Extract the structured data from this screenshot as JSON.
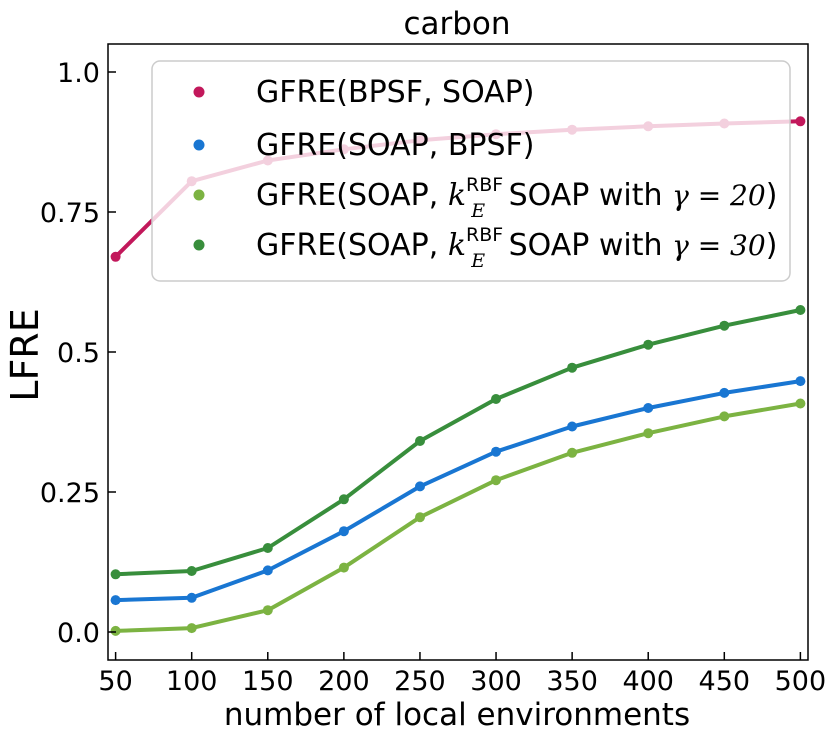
{
  "chart_data": {
    "type": "line",
    "title": "carbon",
    "xlabel": "number of local environments",
    "ylabel": "LFRE",
    "x": [
      50,
      100,
      150,
      200,
      250,
      300,
      350,
      400,
      450,
      500
    ],
    "x_tick_labels": [
      "50",
      "100",
      "150",
      "200",
      "250",
      "300",
      "350",
      "400",
      "450",
      "500"
    ],
    "y_tick_values": [
      0.0,
      0.25,
      0.5,
      0.75,
      1.0
    ],
    "y_tick_labels": [
      "0.0",
      "0.25",
      "0.5",
      "0.75",
      "1.0"
    ],
    "xlim": [
      45,
      505
    ],
    "ylim": [
      -0.05,
      1.05
    ],
    "grid": false,
    "legend_position": "top-right",
    "series": [
      {
        "name": "GFRE(BPSF, SOAP)",
        "color": "#c2185b",
        "values": [
          0.67,
          0.805,
          0.842,
          0.862,
          0.878,
          0.889,
          0.897,
          0.903,
          0.908,
          0.912
        ]
      },
      {
        "name": "GFRE(SOAP, BPSF)",
        "color": "#1976d2",
        "values": [
          0.057,
          0.061,
          0.11,
          0.18,
          0.26,
          0.322,
          0.367,
          0.4,
          0.427,
          0.448
        ]
      },
      {
        "name": "GFRE(SOAP, k_E^RBF SOAP with γ = 20)",
        "name_parts": {
          "prefix": "GFRE(SOAP, ",
          "var": "k",
          "sub": "E",
          "sup": "RBF",
          "mid": " SOAP with ",
          "gamma": "γ = 20",
          "suffix": ")"
        },
        "color": "#7cb342",
        "values": [
          0.002,
          0.007,
          0.039,
          0.115,
          0.205,
          0.271,
          0.32,
          0.355,
          0.385,
          0.408
        ]
      },
      {
        "name": "GFRE(SOAP, k_E^RBF SOAP with γ = 30)",
        "name_parts": {
          "prefix": "GFRE(SOAP, ",
          "var": "k",
          "sub": "E",
          "sup": "RBF",
          "mid": " SOAP with ",
          "gamma": "γ = 30",
          "suffix": ")"
        },
        "color": "#388e3c",
        "values": [
          0.103,
          0.109,
          0.15,
          0.237,
          0.341,
          0.416,
          0.472,
          0.513,
          0.547,
          0.575
        ]
      }
    ]
  }
}
